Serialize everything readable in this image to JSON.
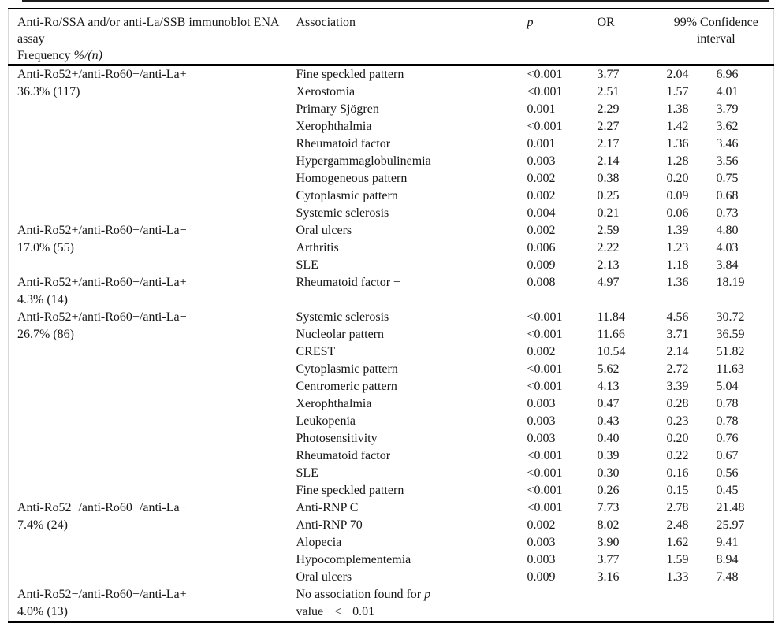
{
  "table": {
    "header": {
      "assay_title": "Anti-Ro/SSA and/or anti-La/SSB immunoblot ENA assay",
      "frequency_prefix": "Frequency ",
      "frequency_italic": "%/(n)",
      "association": "Association",
      "p": "p",
      "or": "OR",
      "ci_line1": "99% Confidence",
      "ci_line2": "interval"
    },
    "groups": [
      {
        "assay": "Anti-Ro52+/anti-Ro60+/anti-La+",
        "frequency": "36.3% (117)",
        "rows": [
          {
            "association": "Fine speckled pattern",
            "p": "<0.001",
            "or": "3.77",
            "ci_low": "2.04",
            "ci_high": "6.96"
          },
          {
            "association": "Xerostomia",
            "p": "<0.001",
            "or": "2.51",
            "ci_low": "1.57",
            "ci_high": "4.01"
          },
          {
            "association": "Primary Sjögren",
            "p": "0.001",
            "or": "2.29",
            "ci_low": "1.38",
            "ci_high": "3.79"
          },
          {
            "association": "Xerophthalmia",
            "p": "<0.001",
            "or": "2.27",
            "ci_low": "1.42",
            "ci_high": "3.62"
          },
          {
            "association": "Rheumatoid factor +",
            "p": "0.001",
            "or": "2.17",
            "ci_low": "1.36",
            "ci_high": "3.46"
          },
          {
            "association": "Hypergammaglobulinemia",
            "p": "0.003",
            "or": "2.14",
            "ci_low": "1.28",
            "ci_high": "3.56"
          },
          {
            "association": "Homogeneous pattern",
            "p": "0.002",
            "or": "0.38",
            "ci_low": "0.20",
            "ci_high": "0.75"
          },
          {
            "association": "Cytoplasmic pattern",
            "p": "0.002",
            "or": "0.25",
            "ci_low": "0.09",
            "ci_high": "0.68"
          },
          {
            "association": "Systemic sclerosis",
            "p": "0.004",
            "or": "0.21",
            "ci_low": "0.06",
            "ci_high": "0.73"
          }
        ]
      },
      {
        "assay": "Anti-Ro52+/anti-Ro60+/anti-La−",
        "frequency": "17.0% (55)",
        "rows": [
          {
            "association": "Oral ulcers",
            "p": "0.002",
            "or": "2.59",
            "ci_low": "1.39",
            "ci_high": "4.80"
          },
          {
            "association": "Arthritis",
            "p": "0.006",
            "or": "2.22",
            "ci_low": "1.23",
            "ci_high": "4.03"
          },
          {
            "association": "SLE",
            "p": "0.009",
            "or": "2.13",
            "ci_low": "1.18",
            "ci_high": "3.84"
          }
        ]
      },
      {
        "assay": "Anti-Ro52+/anti-Ro60−/anti-La+",
        "frequency": "4.3% (14)",
        "rows": [
          {
            "association": "Rheumatoid factor +",
            "p": "0.008",
            "or": "4.97",
            "ci_low": "1.36",
            "ci_high": "18.19"
          }
        ]
      },
      {
        "assay": "Anti-Ro52+/anti-Ro60−/anti-La−",
        "frequency": "26.7% (86)",
        "rows": [
          {
            "association": "Systemic sclerosis",
            "p": "<0.001",
            "or": "11.84",
            "ci_low": "4.56",
            "ci_high": "30.72"
          },
          {
            "association": "Nucleolar pattern",
            "p": "<0.001",
            "or": "11.66",
            "ci_low": "3.71",
            "ci_high": "36.59"
          },
          {
            "association": "CREST",
            "p": "0.002",
            "or": "10.54",
            "ci_low": "2.14",
            "ci_high": "51.82"
          },
          {
            "association": "Cytoplasmic pattern",
            "p": "<0.001",
            "or": "5.62",
            "ci_low": "2.72",
            "ci_high": "11.63"
          },
          {
            "association": "Centromeric pattern",
            "p": "<0.001",
            "or": "4.13",
            "ci_low": "3.39",
            "ci_high": "5.04"
          },
          {
            "association": "Xerophthalmia",
            "p": "0.003",
            "or": "0.47",
            "ci_low": "0.28",
            "ci_high": "0.78"
          },
          {
            "association": "Leukopenia",
            "p": "0.003",
            "or": "0.43",
            "ci_low": "0.23",
            "ci_high": "0.78"
          },
          {
            "association": "Photosensitivity",
            "p": "0.003",
            "or": "0.40",
            "ci_low": "0.20",
            "ci_high": "0.76"
          },
          {
            "association": "Rheumatoid factor +",
            "p": "<0.001",
            "or": "0.39",
            "ci_low": "0.22",
            "ci_high": "0.67"
          },
          {
            "association": "SLE",
            "p": "<0.001",
            "or": "0.30",
            "ci_low": "0.16",
            "ci_high": "0.56"
          },
          {
            "association": "Fine speckled pattern",
            "p": "<0.001",
            "or": "0.26",
            "ci_low": "0.15",
            "ci_high": "0.45"
          }
        ]
      },
      {
        "assay": "Anti-Ro52−/anti-Ro60+/anti-La−",
        "frequency": "7.4% (24)",
        "rows": [
          {
            "association": "Anti-RNP C",
            "p": "<0.001",
            "or": "7.73",
            "ci_low": "2.78",
            "ci_high": "21.48"
          },
          {
            "association": "Anti-RNP 70",
            "p": "0.002",
            "or": "8.02",
            "ci_low": "2.48",
            "ci_high": "25.97"
          },
          {
            "association": "Alopecia",
            "p": "0.003",
            "or": "3.90",
            "ci_low": "1.62",
            "ci_high": "9.41"
          },
          {
            "association": "Hypocomplementemia",
            "p": "0.003",
            "or": "3.77",
            "ci_low": "1.59",
            "ci_high": "8.94"
          },
          {
            "association": "Oral ulcers",
            "p": "0.009",
            "or": "3.16",
            "ci_low": "1.33",
            "ci_high": "7.48"
          }
        ]
      },
      {
        "assay": "Anti-Ro52−/anti-Ro60−/anti-La+",
        "frequency": "4.0% (13)",
        "rows": [],
        "no_association": {
          "line1_text": "No association found for ",
          "line1_italic": "p",
          "line2": "value < 0.01"
        }
      }
    ]
  }
}
